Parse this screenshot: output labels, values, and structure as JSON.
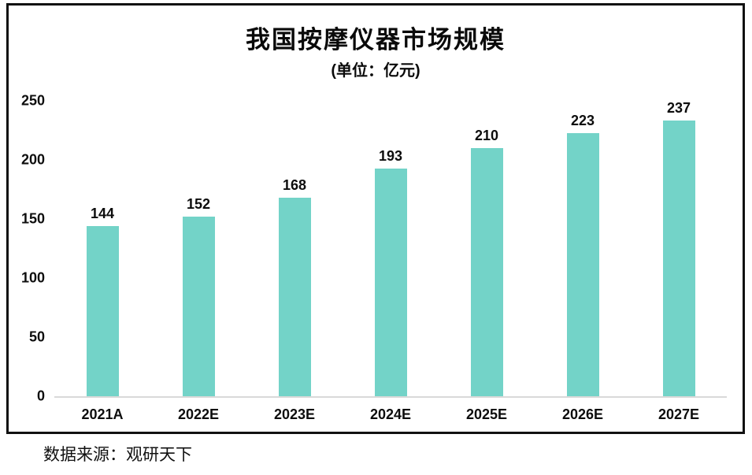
{
  "chart_data": {
    "type": "bar",
    "title": "我国按摩仪器市场规模",
    "subtitle": "(单位：亿元)",
    "categories": [
      "2021A",
      "2022E",
      "2023E",
      "2024E",
      "2025E",
      "2026E",
      "2027E"
    ],
    "values": [
      144,
      152,
      168,
      193,
      210,
      223,
      237
    ],
    "xlabel": "",
    "ylabel": "",
    "ylim": [
      0,
      250
    ],
    "yticks": [
      0,
      50,
      100,
      150,
      200,
      250
    ],
    "grid": false,
    "legend": false,
    "bar_color": "#73d3c8",
    "axis_line_color": "#d9d9d9",
    "frame_border_color": "#111111",
    "label_color": "#0d0d0d"
  },
  "source": {
    "text": "数据来源：观研天下"
  }
}
